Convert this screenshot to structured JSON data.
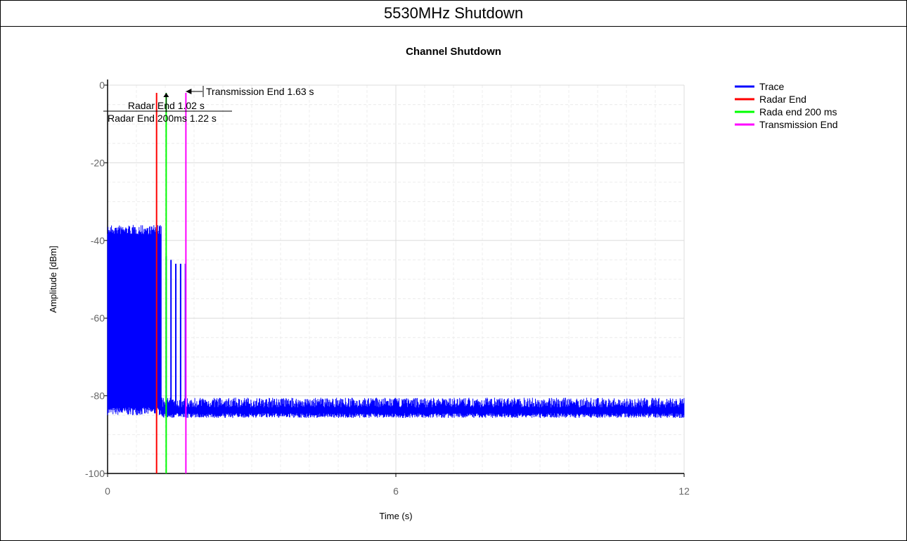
{
  "page_title": "5530MHz Shutdown",
  "chart_data": {
    "type": "line",
    "title": "Channel Shutdown",
    "xlabel": "Time (s)",
    "ylabel": "Amplitude [dBm]",
    "xlim": [
      0,
      12
    ],
    "ylim": [
      -100,
      0
    ],
    "x_ticks": [
      "0",
      "6",
      "12"
    ],
    "y_ticks": [
      "0",
      "-20",
      "-40",
      "-60",
      "-80",
      "-100"
    ],
    "grid": true,
    "legend_position": "right",
    "series": [
      {
        "name": "Trace",
        "color": "#0000ff",
        "segments": [
          {
            "x_start": 0.0,
            "x_end": 1.12,
            "y_low": -85,
            "y_high": -36
          },
          {
            "x_start": 1.12,
            "x_end": 12.0,
            "y_low": -84.5,
            "y_high": -81
          }
        ],
        "pulses": [
          {
            "x": 1.22,
            "y_top": -44
          },
          {
            "x": 1.32,
            "y_top": -45
          },
          {
            "x": 1.42,
            "y_top": -46
          },
          {
            "x": 1.52,
            "y_top": -46
          },
          {
            "x": 1.62,
            "y_top": -46
          }
        ]
      },
      {
        "name": "Radar End",
        "color": "#ff0000",
        "x": 1.02
      },
      {
        "name": "Rada end 200 ms",
        "color": "#00ff00",
        "x": 1.22
      },
      {
        "name": "Transmission End",
        "color": "#ff00ff",
        "x": 1.63
      }
    ],
    "annotations": [
      {
        "text": "Radar End 1.02 s",
        "x": 1.22
      },
      {
        "text": "Radar End 200ms 1.22 s",
        "x": 0.0
      },
      {
        "text": "Transmission End 1.63 s",
        "x": 1.63
      }
    ]
  }
}
